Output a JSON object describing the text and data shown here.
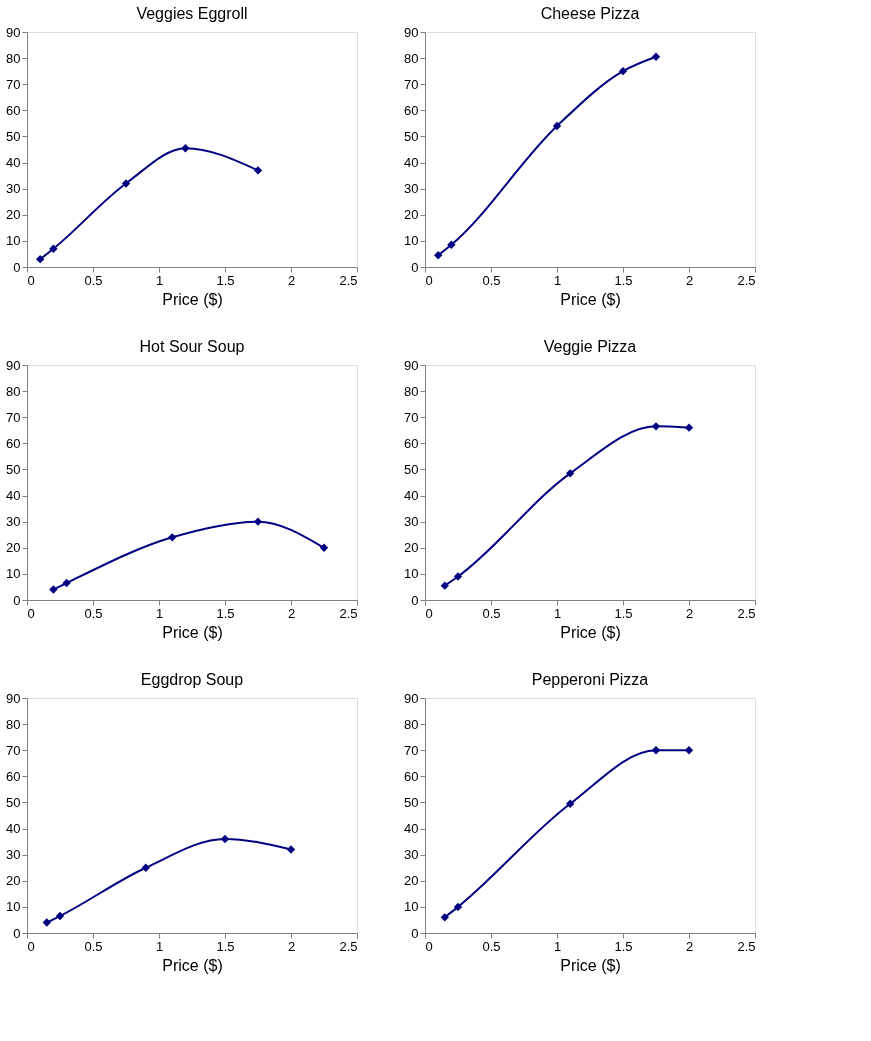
{
  "chart_data": [
    {
      "type": "line",
      "title": "Veggies Eggroll",
      "xlabel": "Price ($)",
      "x": [
        0.1,
        0.2,
        0.75,
        1.2,
        1.75
      ],
      "series": [
        {
          "color": "#000080",
          "values": [
            3,
            7,
            32,
            45.5,
            37
          ]
        }
      ],
      "xlim": [
        0,
        2.5
      ],
      "xticks": [
        0,
        0.5,
        1,
        1.5,
        2,
        2.5
      ],
      "ylim": [
        0,
        90
      ],
      "yticks": [
        0,
        10,
        20,
        30,
        40,
        50,
        60,
        70,
        80,
        90
      ],
      "grid": false,
      "marker": "diamond",
      "line_style": "solid"
    },
    {
      "type": "line",
      "title": "Cheese Pizza",
      "xlabel": "Price ($)",
      "x": [
        0.1,
        0.2,
        1,
        1.5,
        1.75
      ],
      "series": [
        {
          "color": "#000080",
          "values": [
            4.5,
            8.5,
            54,
            75,
            80.5
          ]
        }
      ],
      "xlim": [
        0,
        2.5
      ],
      "xticks": [
        0,
        0.5,
        1,
        1.5,
        2,
        2.5
      ],
      "ylim": [
        0,
        90
      ],
      "yticks": [
        0,
        10,
        20,
        30,
        40,
        50,
        60,
        70,
        80,
        90
      ],
      "grid": false,
      "marker": "diamond",
      "line_style": "solid"
    },
    {
      "type": "line",
      "title": "Hot Sour Soup",
      "xlabel": "Price ($)",
      "x": [
        0.2,
        0.3,
        1.1,
        1.75,
        2.25
      ],
      "series": [
        {
          "color": "#000080",
          "values": [
            4,
            6.5,
            24,
            30,
            20
          ]
        }
      ],
      "xlim": [
        0,
        2.5
      ],
      "xticks": [
        0,
        0.5,
        1,
        1.5,
        2,
        2.5
      ],
      "ylim": [
        0,
        90
      ],
      "yticks": [
        0,
        10,
        20,
        30,
        40,
        50,
        60,
        70,
        80,
        90
      ],
      "grid": false,
      "marker": "diamond",
      "line_style": "solid"
    },
    {
      "type": "line",
      "title": "Veggie Pizza",
      "xlabel": "Price ($)",
      "x": [
        0.15,
        0.25,
        1.1,
        1.75,
        2
      ],
      "series": [
        {
          "color": "#000080",
          "values": [
            5.5,
            9,
            48.5,
            66.5,
            66
          ]
        }
      ],
      "xlim": [
        0,
        2.5
      ],
      "xticks": [
        0,
        0.5,
        1,
        1.5,
        2,
        2.5
      ],
      "ylim": [
        0,
        90
      ],
      "yticks": [
        0,
        10,
        20,
        30,
        40,
        50,
        60,
        70,
        80,
        90
      ],
      "grid": false,
      "marker": "diamond",
      "line_style": "solid"
    },
    {
      "type": "line",
      "title": "Eggdrop Soup",
      "xlabel": "Price ($)",
      "x": [
        0.15,
        0.25,
        0.9,
        1.5,
        2
      ],
      "series": [
        {
          "color": "#000080",
          "values": [
            4,
            6.5,
            25,
            36,
            32
          ]
        }
      ],
      "xlim": [
        0,
        2.5
      ],
      "xticks": [
        0,
        0.5,
        1,
        1.5,
        2,
        2.5
      ],
      "ylim": [
        0,
        90
      ],
      "yticks": [
        0,
        10,
        20,
        30,
        40,
        50,
        60,
        70,
        80,
        90
      ],
      "grid": false,
      "marker": "diamond",
      "line_style": "solid"
    },
    {
      "type": "line",
      "title": "Pepperoni Pizza",
      "xlabel": "Price ($)",
      "x": [
        0.15,
        0.25,
        1.1,
        1.75,
        2
      ],
      "series": [
        {
          "color": "#000080",
          "values": [
            6,
            10,
            49.5,
            70,
            70
          ]
        }
      ],
      "xlim": [
        0,
        2.5
      ],
      "xticks": [
        0,
        0.5,
        1,
        1.5,
        2,
        2.5
      ],
      "ylim": [
        0,
        90
      ],
      "yticks": [
        0,
        10,
        20,
        30,
        40,
        50,
        60,
        70,
        80,
        90
      ],
      "grid": false,
      "marker": "diamond",
      "line_style": "solid"
    }
  ]
}
